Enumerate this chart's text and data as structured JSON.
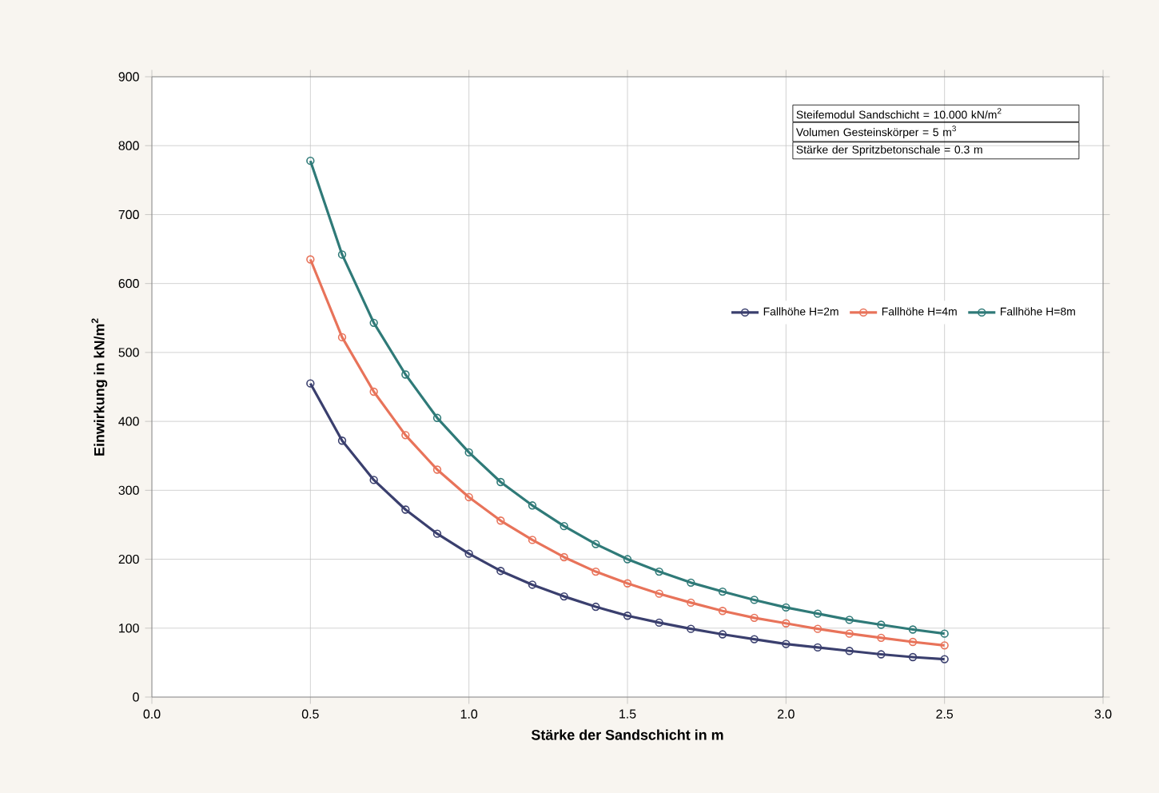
{
  "chart_data": {
    "type": "line",
    "xlabel": "Stärke der Sandschicht in m",
    "ylabel": "Einwirkung in kN/m$^{2}$",
    "x": [
      0.5,
      0.6,
      0.7,
      0.8,
      0.9,
      1.0,
      1.1,
      1.2,
      1.3,
      1.4,
      1.5,
      1.6,
      1.7,
      1.8,
      1.9,
      2.0,
      2.1,
      2.2,
      2.3,
      2.4,
      2.5
    ],
    "series": [
      {
        "name": "Fallhöhe H=2m",
        "color": "#3a3f6e",
        "values": [
          455,
          372,
          315,
          272,
          237,
          208,
          183,
          163,
          146,
          131,
          118,
          108,
          99,
          91,
          84,
          77,
          72,
          67,
          62,
          58,
          55
        ]
      },
      {
        "name": "Fallhöhe H=4m",
        "color": "#e8735a",
        "values": [
          635,
          522,
          443,
          380,
          330,
          290,
          256,
          228,
          203,
          182,
          165,
          150,
          137,
          125,
          115,
          107,
          99,
          92,
          86,
          80,
          75
        ]
      },
      {
        "name": "Fallhöhe H=8m",
        "color": "#2f7a78",
        "values": [
          778,
          642,
          543,
          468,
          405,
          355,
          312,
          278,
          248,
          222,
          200,
          182,
          166,
          153,
          141,
          130,
          121,
          112,
          105,
          98,
          92
        ]
      }
    ],
    "xlim": [
      0,
      3
    ],
    "ylim": [
      0,
      900
    ],
    "xticks": [
      {
        "value": 0,
        "label": "0.0"
      },
      {
        "value": 0.5,
        "label": "0.5"
      },
      {
        "value": 1,
        "label": "1.0"
      },
      {
        "value": 1.5,
        "label": "1.5"
      },
      {
        "value": 2,
        "label": "2.0"
      },
      {
        "value": 2.5,
        "label": "2.5"
      },
      {
        "value": 3,
        "label": "3.0"
      }
    ],
    "yticks": [
      0,
      100,
      200,
      300,
      400,
      500,
      600,
      700,
      800,
      900
    ],
    "grid": true,
    "legend": "right",
    "marker": "circle",
    "line_style": "solid",
    "annotations": [
      "Steifemodul Sandschicht = 10.000 kN/m$^{2}$",
      "Volumen Gesteinskörper = 5 m$^{3}$",
      "Stärke der Spritzbetonschale = 0.3 m"
    ]
  }
}
